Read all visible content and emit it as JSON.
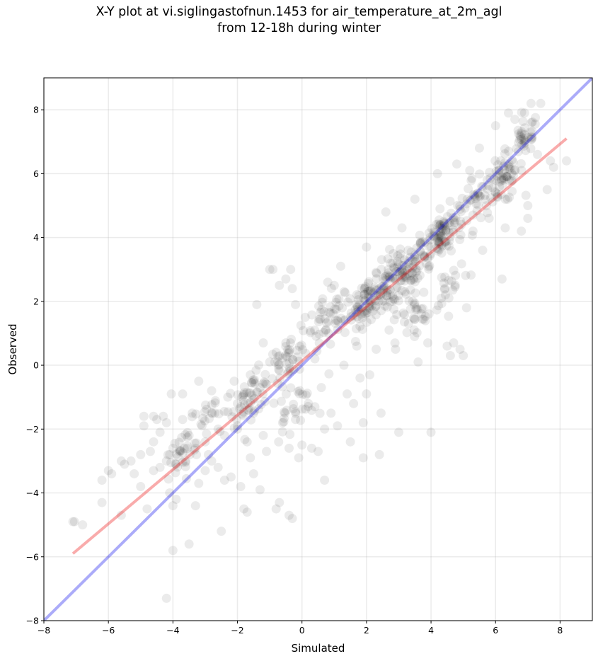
{
  "chart_data": {
    "type": "scatter",
    "title_lines": [
      "X-Y plot at vi.siglingastofnun.1453 for air_temperature_at_2m_agl",
      "from 12-18h during winter"
    ],
    "xlabel": "Simulated",
    "ylabel": "Observed",
    "xlim": [
      -8,
      9
    ],
    "ylim": [
      -8,
      9
    ],
    "xticks": [
      -8,
      -6,
      -4,
      -2,
      0,
      2,
      4,
      6,
      8
    ],
    "yticks": [
      -8,
      -6,
      -4,
      -2,
      0,
      2,
      4,
      6,
      8
    ],
    "tick_labels_x": [
      "−8",
      "−6",
      "−4",
      "−2",
      "0",
      "2",
      "4",
      "6",
      "8"
    ],
    "tick_labels_y": [
      "−8",
      "−6",
      "−4",
      "−2",
      "0",
      "2",
      "4",
      "6",
      "8"
    ],
    "grid": true,
    "point_color": "#000000",
    "point_alpha": 0.08,
    "identity_line": {
      "from": [
        -8,
        -8
      ],
      "to": [
        9,
        9
      ],
      "color": "#0000ee",
      "alpha": 0.33
    },
    "fit_line": {
      "from": [
        -7.1,
        -5.9
      ],
      "to": [
        8.2,
        7.1
      ],
      "color": "#ee0000",
      "alpha": 0.33
    },
    "points": [
      [
        -7.1,
        -4.9
      ],
      [
        -7.05,
        -4.9
      ],
      [
        -6.8,
        -5.0
      ],
      [
        -6.2,
        -3.6
      ],
      [
        -6.2,
        -4.3
      ],
      [
        -6.0,
        -3.3
      ],
      [
        -5.9,
        -3.4
      ],
      [
        -5.6,
        -4.7
      ],
      [
        -5.5,
        -3.1
      ],
      [
        -5.3,
        -3.0
      ],
      [
        -5.2,
        -3.4
      ],
      [
        -5.0,
        -2.8
      ],
      [
        -4.9,
        -1.6
      ],
      [
        -4.9,
        -1.9
      ],
      [
        -4.8,
        -4.5
      ],
      [
        -4.7,
        -2.7
      ],
      [
        -4.6,
        -1.6
      ],
      [
        -4.6,
        -3.3
      ],
      [
        -4.5,
        -1.7
      ],
      [
        -4.4,
        -2.1
      ],
      [
        -4.3,
        -1.6
      ],
      [
        -4.2,
        -3.0
      ],
      [
        -4.2,
        -1.8
      ],
      [
        -4.1,
        -4.0
      ],
      [
        -4.1,
        -2.8
      ],
      [
        -4.0,
        -2.6
      ],
      [
        -4.0,
        -4.4
      ],
      [
        -4.05,
        -0.9
      ],
      [
        -4.0,
        -5.8
      ],
      [
        -4.2,
        -7.3
      ],
      [
        -3.9,
        -3.1
      ],
      [
        -3.8,
        -2.7
      ],
      [
        -3.7,
        -0.9
      ],
      [
        -3.7,
        -1.7
      ],
      [
        -3.6,
        -3.0
      ],
      [
        -3.5,
        -5.6
      ],
      [
        -3.4,
        -1.5
      ],
      [
        -3.3,
        -2.6
      ],
      [
        -3.2,
        -0.5
      ],
      [
        -3.2,
        -3.7
      ],
      [
        -3.1,
        -1.9
      ],
      [
        -3.0,
        -3.3
      ],
      [
        -2.9,
        -2.8
      ],
      [
        -2.8,
        -0.8
      ],
      [
        -2.7,
        -1.5
      ],
      [
        -2.6,
        -3.2
      ],
      [
        -2.5,
        -5.2
      ],
      [
        -2.4,
        -2.2
      ],
      [
        -2.3,
        -1.0
      ],
      [
        -2.2,
        -3.5
      ],
      [
        -2.1,
        -0.5
      ],
      [
        -2.0,
        -2.0
      ],
      [
        -1.9,
        -3.8
      ],
      [
        -1.9,
        -1.3
      ],
      [
        -1.8,
        -4.5
      ],
      [
        -1.7,
        -4.6
      ],
      [
        -1.7,
        -2.4
      ],
      [
        -1.6,
        -0.3
      ],
      [
        -1.5,
        -3.4
      ],
      [
        -1.5,
        -1.5
      ],
      [
        -1.4,
        1.9
      ],
      [
        -1.3,
        -3.9
      ],
      [
        -1.2,
        0.7
      ],
      [
        -1.2,
        -2.2
      ],
      [
        -1.1,
        -0.6
      ],
      [
        -1.0,
        3.0
      ],
      [
        -0.9,
        3.0
      ],
      [
        -0.8,
        -4.5
      ],
      [
        -0.7,
        2.5
      ],
      [
        -0.7,
        -4.3
      ],
      [
        -0.6,
        -1.8
      ],
      [
        -0.5,
        2.7
      ],
      [
        -0.4,
        -4.7
      ],
      [
        -0.4,
        -2.6
      ],
      [
        -0.35,
        3.0
      ],
      [
        -0.3,
        2.4
      ],
      [
        -0.3,
        -4.8
      ],
      [
        -0.2,
        1.9
      ],
      [
        -0.1,
        -2.9
      ],
      [
        0.0,
        -2.5
      ],
      [
        0.1,
        1.5
      ],
      [
        0.2,
        -1.2
      ],
      [
        0.3,
        -2.6
      ],
      [
        0.4,
        -1.3
      ],
      [
        0.5,
        -2.7
      ],
      [
        0.6,
        -0.7
      ],
      [
        0.7,
        -2.0
      ],
      [
        0.7,
        -3.6
      ],
      [
        0.8,
        2.6
      ],
      [
        0.9,
        -1.5
      ],
      [
        1.0,
        2.5
      ],
      [
        1.1,
        -1.9
      ],
      [
        1.2,
        3.1
      ],
      [
        1.3,
        0.0
      ],
      [
        1.4,
        -0.9
      ],
      [
        1.5,
        -2.4
      ],
      [
        1.6,
        -1.2
      ],
      [
        1.8,
        -0.4
      ],
      [
        1.9,
        -1.8
      ],
      [
        1.9,
        -2.9
      ],
      [
        2.0,
        -0.9
      ],
      [
        2.0,
        3.7
      ],
      [
        2.1,
        -0.3
      ],
      [
        2.3,
        0.5
      ],
      [
        2.4,
        -2.8
      ],
      [
        2.45,
        -1.5
      ],
      [
        2.6,
        4.8
      ],
      [
        2.9,
        0.5
      ],
      [
        3.0,
        -2.1
      ],
      [
        3.5,
        5.2
      ],
      [
        3.6,
        0.1
      ],
      [
        3.9,
        0.7
      ],
      [
        4.0,
        -2.1
      ],
      [
        4.5,
        0.6
      ],
      [
        4.6,
        0.3
      ],
      [
        4.7,
        0.7
      ],
      [
        4.9,
        0.5
      ],
      [
        5.0,
        0.3
      ],
      [
        5.1,
        1.8
      ],
      [
        5.2,
        6.1
      ],
      [
        5.5,
        6.8
      ],
      [
        5.6,
        3.6
      ],
      [
        6.0,
        5.4
      ],
      [
        6.0,
        7.5
      ],
      [
        6.1,
        6.1
      ],
      [
        6.2,
        2.7
      ],
      [
        6.3,
        4.3
      ],
      [
        6.4,
        7.9
      ],
      [
        6.6,
        7.7
      ],
      [
        6.8,
        4.2
      ],
      [
        6.9,
        7.9
      ],
      [
        7.0,
        4.6
      ],
      [
        7.1,
        8.2
      ],
      [
        7.3,
        6.6
      ],
      [
        7.4,
        8.2
      ],
      [
        7.6,
        5.5
      ],
      [
        7.7,
        6.4
      ],
      [
        7.8,
        6.2
      ],
      [
        8.2,
        6.4
      ],
      [
        7.0,
        5.0
      ],
      [
        4.2,
        6.0
      ],
      [
        4.8,
        6.3
      ],
      [
        5.3,
        4.2
      ],
      [
        5.8,
        4.6
      ],
      [
        3.1,
        4.3
      ],
      [
        3.3,
        1.3
      ],
      [
        2.7,
        1.1
      ],
      [
        2.2,
        1.7
      ],
      [
        1.7,
        0.6
      ],
      [
        1.3,
        1.4
      ],
      [
        0.4,
        0.2
      ],
      [
        -0.5,
        0.7
      ],
      [
        -0.8,
        0.4
      ],
      [
        -1.0,
        0.1
      ],
      [
        -1.3,
        -0.7
      ],
      [
        -2.0,
        -1.2
      ],
      [
        -2.6,
        -2.0
      ],
      [
        -3.0,
        -2.4
      ],
      [
        -3.5,
        -2.2
      ],
      [
        -4.4,
        -3.2
      ],
      [
        -5.6,
        -3.0
      ],
      [
        -5.0,
        -3.8
      ],
      [
        -4.6,
        -2.4
      ],
      [
        -3.9,
        -4.2
      ],
      [
        -3.3,
        -4.4
      ],
      [
        -2.8,
        -3.0
      ],
      [
        -2.4,
        -3.6
      ],
      [
        -1.6,
        -2.9
      ],
      [
        -1.1,
        -2.7
      ],
      [
        -0.2,
        -1.7
      ]
    ],
    "clusters": [
      {
        "cx": 3.0,
        "cy": 2.7,
        "sx": 0.75,
        "sy": 0.75,
        "n": 130
      },
      {
        "cx": 4.3,
        "cy": 4.1,
        "sx": 0.6,
        "sy": 0.6,
        "n": 95
      },
      {
        "cx": 2.0,
        "cy": 2.0,
        "sx": 0.55,
        "sy": 0.5,
        "n": 70
      },
      {
        "cx": 6.2,
        "cy": 5.8,
        "sx": 0.55,
        "sy": 0.65,
        "n": 65
      },
      {
        "cx": 6.9,
        "cy": 7.1,
        "sx": 0.35,
        "sy": 0.45,
        "n": 35
      },
      {
        "cx": 0.8,
        "cy": 1.3,
        "sx": 0.6,
        "sy": 0.7,
        "n": 45
      },
      {
        "cx": -0.4,
        "cy": 0.3,
        "sx": 0.55,
        "sy": 0.6,
        "n": 45
      },
      {
        "cx": -1.6,
        "cy": -1.0,
        "sx": 0.5,
        "sy": 0.5,
        "n": 45
      },
      {
        "cx": -0.3,
        "cy": -1.4,
        "sx": 0.6,
        "sy": 0.7,
        "n": 30
      },
      {
        "cx": -3.8,
        "cy": -2.9,
        "sx": 0.6,
        "sy": 0.6,
        "n": 30
      },
      {
        "cx": -2.8,
        "cy": -1.6,
        "sx": 0.6,
        "sy": 0.6,
        "n": 20
      },
      {
        "cx": 3.6,
        "cy": 1.6,
        "sx": 0.7,
        "sy": 0.7,
        "n": 30
      },
      {
        "cx": 4.6,
        "cy": 2.6,
        "sx": 0.5,
        "sy": 0.6,
        "n": 20
      },
      {
        "cx": 5.3,
        "cy": 5.2,
        "sx": 0.6,
        "sy": 0.6,
        "n": 30
      }
    ]
  }
}
